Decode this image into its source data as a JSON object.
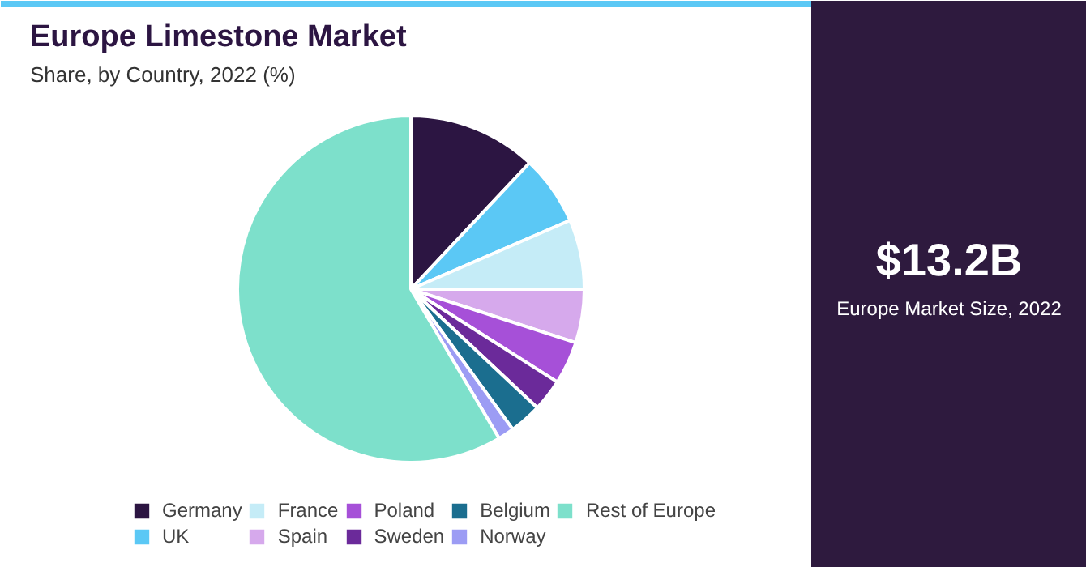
{
  "chart_data": {
    "type": "pie",
    "title": "Europe Limestone Market",
    "subtitle": "Share, by Country, 2022 (%)",
    "categories": [
      "Germany",
      "UK",
      "France",
      "Spain",
      "Poland",
      "Sweden",
      "Belgium",
      "Norway",
      "Rest of Europe"
    ],
    "values": [
      12,
      6.5,
      6.5,
      5,
      4,
      3,
      3,
      1.5,
      58.5
    ],
    "colors": [
      "#2c1542",
      "#5bc8f5",
      "#c5ecf7",
      "#d6a9ec",
      "#a650d8",
      "#6b2a9a",
      "#1b6e8f",
      "#9c9cf4",
      "#7de0cb"
    ],
    "legend": "bottom",
    "annotations": [
      "$13.2B",
      "Europe Market Size, 2022"
    ]
  }
}
